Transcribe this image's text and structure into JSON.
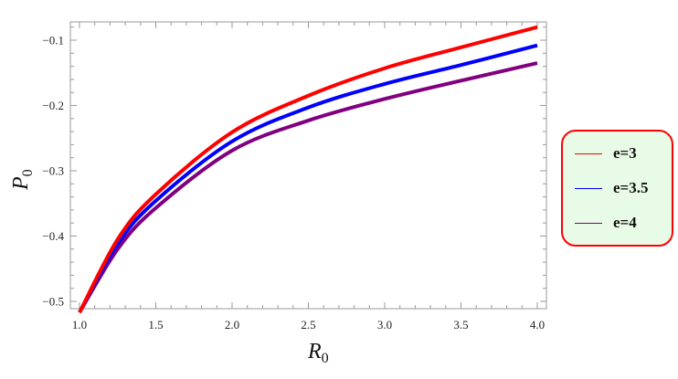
{
  "chart_data": {
    "type": "line",
    "title": "",
    "xlabel": "R_0",
    "ylabel": "P_0",
    "xlim": [
      0.94,
      4.06
    ],
    "ylim": [
      -0.528,
      -0.072
    ],
    "grid": false,
    "legend_position": "right (outside plot, rounded box)",
    "x_ticks": [
      "1.0",
      "1.5",
      "2.0",
      "2.5",
      "3.0",
      "3.5",
      "4.0"
    ],
    "y_ticks": [
      "-0.1",
      "-0.2",
      "-0.3",
      "-0.4",
      "-0.5"
    ],
    "x": [
      1.0,
      1.25,
      1.5,
      2.0,
      2.5,
      3.0,
      3.5,
      4.0
    ],
    "series": [
      {
        "name": "e=3",
        "color": "#ff0000",
        "values": [
          -0.517,
          -0.405,
          -0.336,
          -0.241,
          -0.185,
          -0.143,
          -0.111,
          -0.08
        ]
      },
      {
        "name": "e=3.5",
        "color": "#0000ff",
        "values": [
          -0.517,
          -0.412,
          -0.346,
          -0.255,
          -0.203,
          -0.167,
          -0.138,
          -0.108
        ]
      },
      {
        "name": "e=4",
        "color": "#800080",
        "values": [
          -0.517,
          -0.42,
          -0.357,
          -0.269,
          -0.223,
          -0.19,
          -0.162,
          -0.135
        ]
      }
    ]
  },
  "axes": {
    "x_label_main": "R",
    "x_label_sub": "0",
    "y_label_main": "P",
    "y_label_sub": "0"
  },
  "legend": {
    "items": [
      {
        "label": "e=3",
        "color": "#ff0000"
      },
      {
        "label": "e=3.5",
        "color": "#0000ff"
      },
      {
        "label": "e=4",
        "color": "#800080"
      }
    ],
    "border_color": "#ff0000",
    "background": "#e8fbe6"
  }
}
